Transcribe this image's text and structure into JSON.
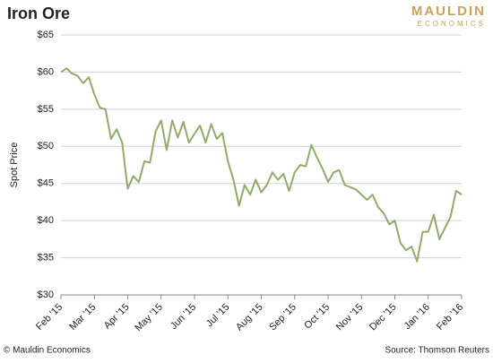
{
  "chart_data": {
    "type": "line",
    "title": "Iron Ore",
    "logo": "MAULDIN",
    "logo_subtitle": "ECONOMICS",
    "y_label": "Spot Price",
    "footer_left": "© Mauldin Economics",
    "source": "Source: Thomson Reuters",
    "categories": [
      "Feb '15",
      null,
      null,
      null,
      null,
      null,
      "Mar '15",
      null,
      null,
      null,
      null,
      null,
      "Apr '15",
      null,
      null,
      null,
      null,
      null,
      "May '15",
      null,
      null,
      null,
      null,
      null,
      "Jun '15",
      null,
      null,
      null,
      null,
      null,
      "Jul '15",
      null,
      null,
      null,
      null,
      null,
      "Aug '15",
      null,
      null,
      null,
      null,
      null,
      "Sep '15",
      null,
      null,
      null,
      null,
      null,
      "Oct '15",
      null,
      null,
      null,
      null,
      null,
      "Nov '15",
      null,
      null,
      null,
      null,
      null,
      "Dec '15",
      null,
      null,
      null,
      null,
      null,
      "Jan '16",
      null,
      null,
      null,
      null,
      null,
      "Feb '16"
    ],
    "series": [
      {
        "name": "Iron Ore",
        "color": "#8fac6a",
        "values": [
          60,
          60.5,
          59.8,
          59.5,
          58.5,
          59.3,
          57,
          55.2,
          55,
          51,
          52.3,
          50.5,
          44.3,
          46,
          45.2,
          48,
          47.8,
          52,
          53.5,
          49.5,
          53.5,
          51.2,
          53.3,
          50.5,
          51.7,
          52.8,
          50.5,
          53,
          51,
          51.8,
          48,
          45.5,
          42,
          44.8,
          43.5,
          45.5,
          43.8,
          44.8,
          46.5,
          45.5,
          46.3,
          44,
          46.5,
          47.5,
          47.3,
          50.2,
          48.5,
          47,
          45.2,
          46.5,
          46.8,
          44.8,
          44.5,
          44.2,
          43.5,
          42.8,
          43.5,
          41.8,
          41,
          39.5,
          40,
          37,
          36,
          36.5,
          34.5,
          38.5,
          38.5,
          40.8,
          37.5,
          39,
          40.5,
          44,
          43.5
        ]
      }
    ],
    "ylim": [
      30,
      65
    ],
    "yticks": [
      {
        "value": 30,
        "label": "$30"
      },
      {
        "value": 35,
        "label": "$35"
      },
      {
        "value": 40,
        "label": "$40"
      },
      {
        "value": 45,
        "label": "$45"
      },
      {
        "value": 50,
        "label": "$50"
      },
      {
        "value": 55,
        "label": "$55"
      },
      {
        "value": 60,
        "label": "$60"
      },
      {
        "value": 65,
        "label": "$65"
      }
    ],
    "grid": true
  }
}
